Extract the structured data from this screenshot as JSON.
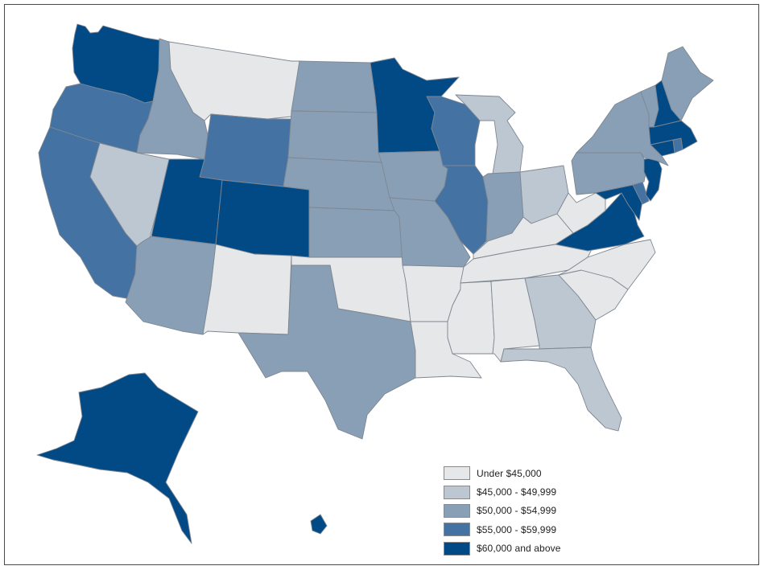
{
  "legend": {
    "items": [
      {
        "label": "Under $45,000",
        "color": "#e6e7e8"
      },
      {
        "label": "$45,000 - $49,999",
        "color": "#bcc7d1"
      },
      {
        "label": "$50,000 - $54,999",
        "color": "#889fb5"
      },
      {
        "label": "$55,000 - $59,999",
        "color": "#4472a2"
      },
      {
        "label": "$60,000 and above",
        "color": "#024a86"
      }
    ]
  },
  "states": [
    {
      "name": "Washington",
      "class": 4
    },
    {
      "name": "Oregon",
      "class": 3
    },
    {
      "name": "California",
      "class": 3
    },
    {
      "name": "Idaho",
      "class": 2
    },
    {
      "name": "Nevada",
      "class": 1
    },
    {
      "name": "Montana",
      "class": 0
    },
    {
      "name": "Wyoming",
      "class": 3
    },
    {
      "name": "Utah",
      "class": 4
    },
    {
      "name": "Colorado",
      "class": 4
    },
    {
      "name": "Arizona",
      "class": 2
    },
    {
      "name": "New Mexico",
      "class": 0
    },
    {
      "name": "North Dakota",
      "class": 2
    },
    {
      "name": "South Dakota",
      "class": 2
    },
    {
      "name": "Nebraska",
      "class": 2
    },
    {
      "name": "Kansas",
      "class": 2
    },
    {
      "name": "Oklahoma",
      "class": 0
    },
    {
      "name": "Texas",
      "class": 2
    },
    {
      "name": "Minnesota",
      "class": 4
    },
    {
      "name": "Iowa",
      "class": 2
    },
    {
      "name": "Missouri",
      "class": 2
    },
    {
      "name": "Arkansas",
      "class": 0
    },
    {
      "name": "Louisiana",
      "class": 0
    },
    {
      "name": "Wisconsin",
      "class": 3
    },
    {
      "name": "Illinois",
      "class": 3
    },
    {
      "name": "Michigan",
      "class": 1
    },
    {
      "name": "Indiana",
      "class": 2
    },
    {
      "name": "Ohio",
      "class": 1
    },
    {
      "name": "Kentucky",
      "class": 0
    },
    {
      "name": "Tennessee",
      "class": 0
    },
    {
      "name": "Mississippi",
      "class": 0
    },
    {
      "name": "Alabama",
      "class": 0
    },
    {
      "name": "Georgia",
      "class": 1
    },
    {
      "name": "Florida",
      "class": 1
    },
    {
      "name": "South Carolina",
      "class": 0
    },
    {
      "name": "North Carolina",
      "class": 0
    },
    {
      "name": "Virginia",
      "class": 4
    },
    {
      "name": "West Virginia",
      "class": 0
    },
    {
      "name": "Maryland",
      "class": 4
    },
    {
      "name": "Delaware",
      "class": 3
    },
    {
      "name": "Pennsylvania",
      "class": 2
    },
    {
      "name": "New Jersey",
      "class": 4
    },
    {
      "name": "New York",
      "class": 2
    },
    {
      "name": "Connecticut",
      "class": 4
    },
    {
      "name": "Rhode Island",
      "class": 3
    },
    {
      "name": "Massachusetts",
      "class": 4
    },
    {
      "name": "Vermont",
      "class": 2
    },
    {
      "name": "New Hampshire",
      "class": 4
    },
    {
      "name": "Maine",
      "class": 2
    },
    {
      "name": "Alaska",
      "class": 4
    },
    {
      "name": "Hawaii",
      "class": 4
    }
  ]
}
